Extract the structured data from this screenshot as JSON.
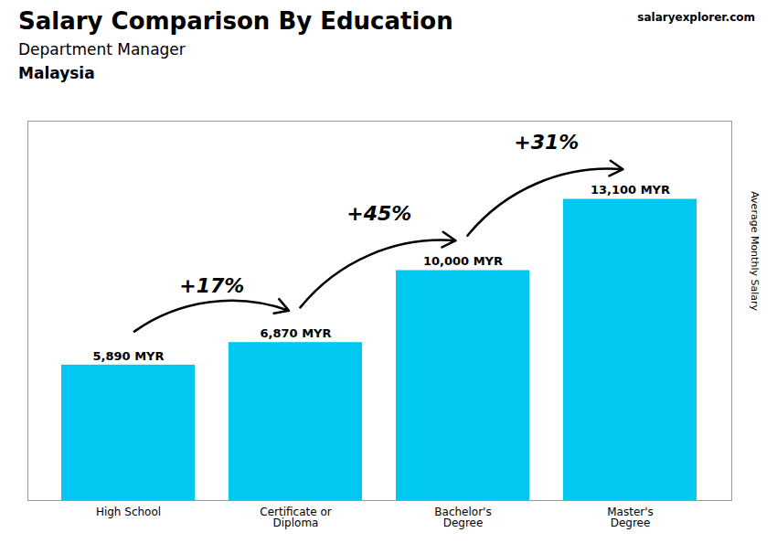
{
  "chart_data": {
    "type": "bar",
    "title": "Salary Comparison By Education",
    "subtitle": "Department Manager",
    "categories": [
      "High School",
      "Certificate or\nDiploma",
      "Bachelor's\nDegree",
      "Master's\nDegree"
    ],
    "values": [
      5890,
      6870,
      10000,
      13100
    ],
    "value_labels": [
      "5,890 MYR",
      "6,870 MYR",
      "10,000 MYR",
      "13,100 MYR"
    ],
    "data_labels": true,
    "color": "#00c8f0",
    "ylim": [
      0,
      16500
    ],
    "yticks": [],
    "ylabel": "Average Monthly Salary",
    "tick_labels": "x",
    "grid": false,
    "annotations": [
      {
        "text": "Malaysia"
      },
      {
        "text": "salaryexplorer.com"
      },
      {
        "text": "+17%",
        "from": "High School",
        "to": "Certificate or\nDiploma"
      },
      {
        "text": "+45%",
        "from": "Certificate or\nDiploma",
        "to": "Bachelor's\nDegree"
      },
      {
        "text": "+31%",
        "from": "Bachelor's\nDegree",
        "to": "Master's\nDegree"
      }
    ]
  }
}
